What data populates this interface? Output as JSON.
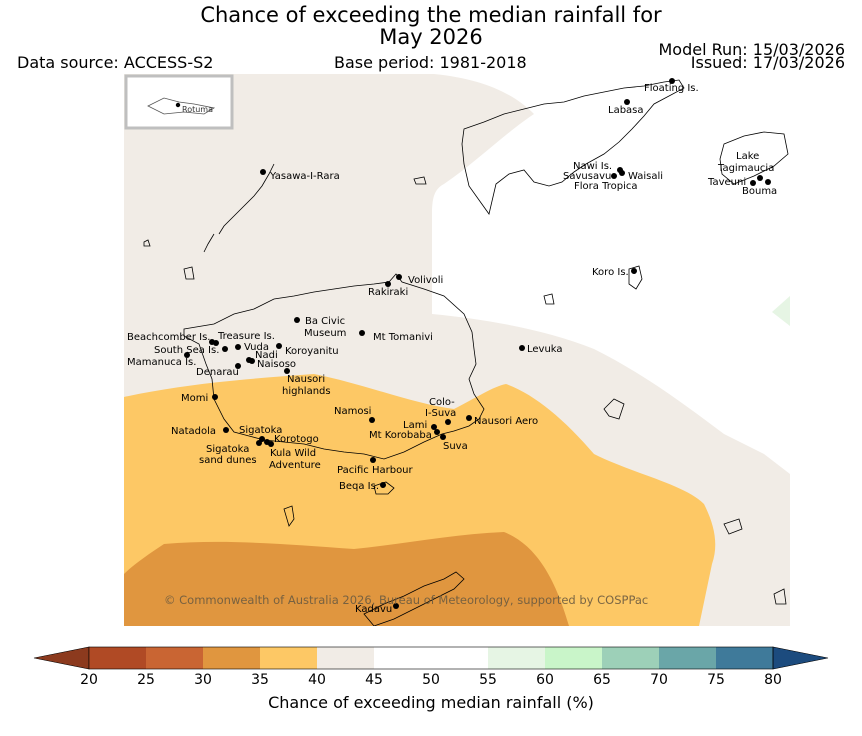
{
  "header": {
    "title_line1": "Chance of exceeding the median rainfall for",
    "title_line2": "May 2026",
    "data_source": "Data source: ACCESS-S2",
    "base_period": "Base period: 1981-2018",
    "model_run": "Model Run: 15/03/2026",
    "issued": "Issued: 17/03/2026"
  },
  "inset": {
    "label": "Rotuma"
  },
  "places": [
    {
      "name": "Floating Is."
    },
    {
      "name": "Labasa"
    },
    {
      "name": "Nawi Is."
    },
    {
      "name": "Savusavu"
    },
    {
      "name": "Waisali"
    },
    {
      "name": "Flora Tropica"
    },
    {
      "name": "Lake"
    },
    {
      "name": "Tagimaucia"
    },
    {
      "name": "Taveuni"
    },
    {
      "name": "Bouma"
    },
    {
      "name": "Yasawa-I-Rara"
    },
    {
      "name": "Koro Is."
    },
    {
      "name": "Volivoli"
    },
    {
      "name": "Rakiraki"
    },
    {
      "name": "Ba Civic"
    },
    {
      "name": "Museum"
    },
    {
      "name": "Mt Tomanivi"
    },
    {
      "name": "Beachcomber Is."
    },
    {
      "name": "Treasure Is."
    },
    {
      "name": "South Sea Is."
    },
    {
      "name": "Vuda"
    },
    {
      "name": "Nadi"
    },
    {
      "name": "Koroyanitu"
    },
    {
      "name": "Mamanuca Is."
    },
    {
      "name": "Naisoso"
    },
    {
      "name": "Denarau"
    },
    {
      "name": "Nausori"
    },
    {
      "name": "highlands"
    },
    {
      "name": "Levuka"
    },
    {
      "name": "Momi"
    },
    {
      "name": "Colo-"
    },
    {
      "name": "I-Suva"
    },
    {
      "name": "Namosi"
    },
    {
      "name": "Lami"
    },
    {
      "name": "Nausori Aero"
    },
    {
      "name": "Natadola"
    },
    {
      "name": "Sigatoka"
    },
    {
      "name": "Mt Korobaba"
    },
    {
      "name": "Korotogo"
    },
    {
      "name": "Suva"
    },
    {
      "name": "Sigatoka"
    },
    {
      "name": "sand dunes"
    },
    {
      "name": "Kula Wild"
    },
    {
      "name": "Adventure"
    },
    {
      "name": "Pacific Harbour"
    },
    {
      "name": "Beqa Is."
    },
    {
      "name": "Kadavu"
    }
  ],
  "copyright": "© Commonwealth of Australia 2026, Bureau of Meteorology, supported by COSPPac",
  "colorbar": {
    "label": "Chance of exceeding median rainfall (%)",
    "ticks": [
      "20",
      "25",
      "30",
      "35",
      "40",
      "45",
      "50",
      "55",
      "60",
      "65",
      "70",
      "75",
      "80"
    ],
    "under_color": "#8c3a1e",
    "colors": [
      "#b04a25",
      "#c96533",
      "#e0963f",
      "#fdc865",
      "#f1ece6",
      "#ffffff",
      "#ffffff",
      "#e6f5e4",
      "#c9f5c9",
      "#9dd0b8",
      "#6aa6a8",
      "#3f7a9a"
    ],
    "over_color": "#1c4b7e"
  },
  "legend_classes": {
    "near_normal": "40-45",
    "drier_35_40": "35-40",
    "drier_30_35": "30-35",
    "wetter_55_60": "55-60"
  }
}
